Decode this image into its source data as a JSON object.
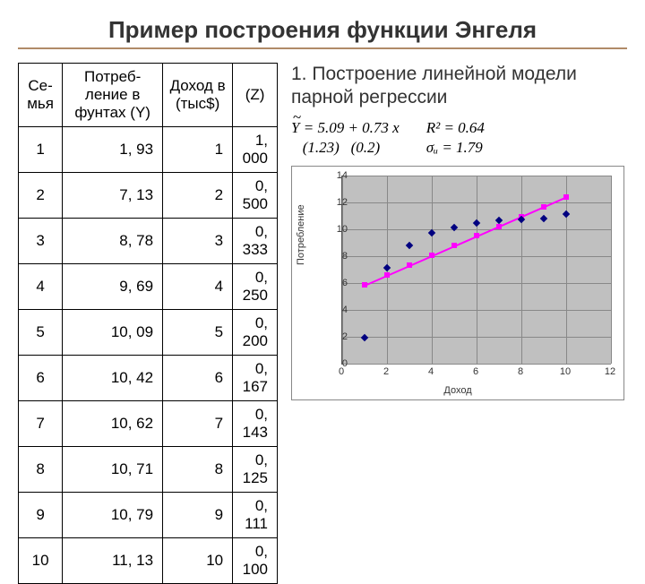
{
  "title": "Пример построения функции Энгеля",
  "subtitle": "1. Построение линейной модели парной регрессии",
  "formulas": {
    "eq": "Y = 5.09 + 0.73 x",
    "se1": "(1.23)",
    "se2": "(0.2)",
    "r2": "R² = 0.64",
    "sigma": "σᵤ = 1.79"
  },
  "table": {
    "headers": [
      "Се-мья",
      "Потреб-ление в фунтах (Y)",
      "Доход в (тыс$)",
      "(Z)"
    ],
    "rows": [
      [
        "1",
        "1, 93",
        "1",
        "1, 000"
      ],
      [
        "2",
        "7, 13",
        "2",
        "0, 500"
      ],
      [
        "3",
        "8, 78",
        "3",
        "0, 333"
      ],
      [
        "4",
        "9, 69",
        "4",
        "0, 250"
      ],
      [
        "5",
        "10, 09",
        "5",
        "0, 200"
      ],
      [
        "6",
        "10, 42",
        "6",
        "0, 167"
      ],
      [
        "7",
        "10, 62",
        "7",
        "0, 143"
      ],
      [
        "8",
        "10, 71",
        "8",
        "0, 125"
      ],
      [
        "9",
        "10, 79",
        "9",
        "0, 111"
      ],
      [
        "10",
        "11, 13",
        "10",
        "0, 100"
      ]
    ]
  },
  "chart": {
    "xlabel": "Доход",
    "ylabel": "Потребление",
    "xlim": [
      0,
      12
    ],
    "ylim": [
      0,
      14
    ],
    "xtick_step": 2,
    "ytick_step": 2,
    "navy_points": [
      [
        1,
        1.93
      ],
      [
        2,
        7.13
      ],
      [
        3,
        8.78
      ],
      [
        4,
        9.69
      ],
      [
        5,
        10.09
      ],
      [
        6,
        10.42
      ],
      [
        7,
        10.62
      ],
      [
        8,
        10.71
      ],
      [
        9,
        10.79
      ],
      [
        10,
        11.13
      ]
    ],
    "fit_intercept": 5.09,
    "fit_slope": 0.73,
    "fit_xrange": [
      1,
      10
    ],
    "colors": {
      "plot_bg": "#c0c0c0",
      "scatter": "#000080",
      "fit": "#ff00ff",
      "grid": "#888888"
    }
  }
}
